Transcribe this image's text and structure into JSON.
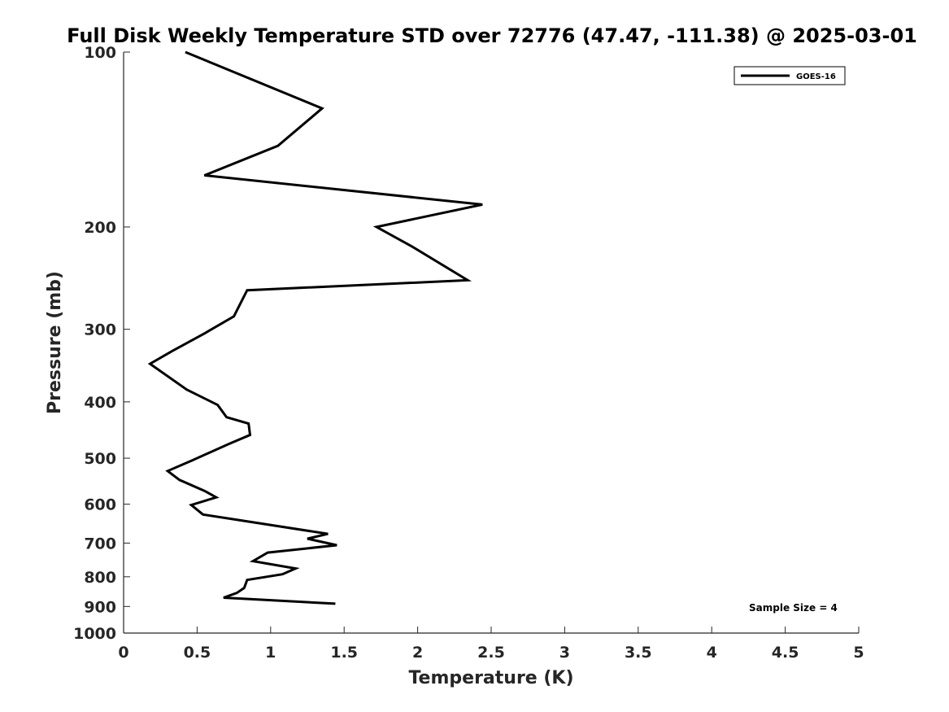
{
  "chart_data": {
    "type": "line",
    "title": "Full Disk Weekly Temperature STD over 72776 (47.47, -111.38) @ 2025-03-01",
    "xlabel": "Temperature (K)",
    "ylabel": "Pressure (mb)",
    "xlim": [
      0,
      5
    ],
    "ylim": [
      100,
      1000
    ],
    "y_scale": "log",
    "y_reversed": true,
    "grid": false,
    "legend_position": "top-right",
    "x_ticks": [
      0,
      0.5,
      1,
      1.5,
      2,
      2.5,
      3,
      3.5,
      4,
      4.5,
      5
    ],
    "x_tick_labels": [
      "0",
      "0.5",
      "1",
      "1.5",
      "2",
      "2.5",
      "3",
      "3.5",
      "4",
      "4.5",
      "5"
    ],
    "y_ticks": [
      100,
      200,
      300,
      400,
      500,
      600,
      700,
      800,
      900,
      1000
    ],
    "y_tick_labels": [
      "100",
      "200",
      "300",
      "400",
      "500",
      "600",
      "700",
      "800",
      "900",
      "1000"
    ],
    "annotation": "Sample Size = 4",
    "series": [
      {
        "name": "GOES-16",
        "color": "#000000",
        "points": [
          {
            "x": 0.42,
            "y": 100
          },
          {
            "x": 1.35,
            "y": 125
          },
          {
            "x": 1.05,
            "y": 145
          },
          {
            "x": 0.55,
            "y": 163
          },
          {
            "x": 2.44,
            "y": 183
          },
          {
            "x": 1.72,
            "y": 200
          },
          {
            "x": 1.96,
            "y": 216
          },
          {
            "x": 2.34,
            "y": 247
          },
          {
            "x": 0.84,
            "y": 257
          },
          {
            "x": 0.75,
            "y": 285
          },
          {
            "x": 0.55,
            "y": 305
          },
          {
            "x": 0.33,
            "y": 327
          },
          {
            "x": 0.18,
            "y": 344
          },
          {
            "x": 0.43,
            "y": 381
          },
          {
            "x": 0.64,
            "y": 405
          },
          {
            "x": 0.7,
            "y": 425
          },
          {
            "x": 0.85,
            "y": 436
          },
          {
            "x": 0.86,
            "y": 456
          },
          {
            "x": 0.72,
            "y": 472
          },
          {
            "x": 0.47,
            "y": 504
          },
          {
            "x": 0.3,
            "y": 526
          },
          {
            "x": 0.38,
            "y": 545
          },
          {
            "x": 0.55,
            "y": 569
          },
          {
            "x": 0.63,
            "y": 584
          },
          {
            "x": 0.46,
            "y": 602
          },
          {
            "x": 0.54,
            "y": 625
          },
          {
            "x": 1.39,
            "y": 675
          },
          {
            "x": 1.25,
            "y": 688
          },
          {
            "x": 1.45,
            "y": 706
          },
          {
            "x": 0.98,
            "y": 727
          },
          {
            "x": 0.88,
            "y": 752
          },
          {
            "x": 1.17,
            "y": 774
          },
          {
            "x": 1.08,
            "y": 792
          },
          {
            "x": 0.84,
            "y": 810
          },
          {
            "x": 0.82,
            "y": 836
          },
          {
            "x": 0.77,
            "y": 853
          },
          {
            "x": 0.68,
            "y": 869
          },
          {
            "x": 1.44,
            "y": 890
          }
        ]
      }
    ]
  }
}
